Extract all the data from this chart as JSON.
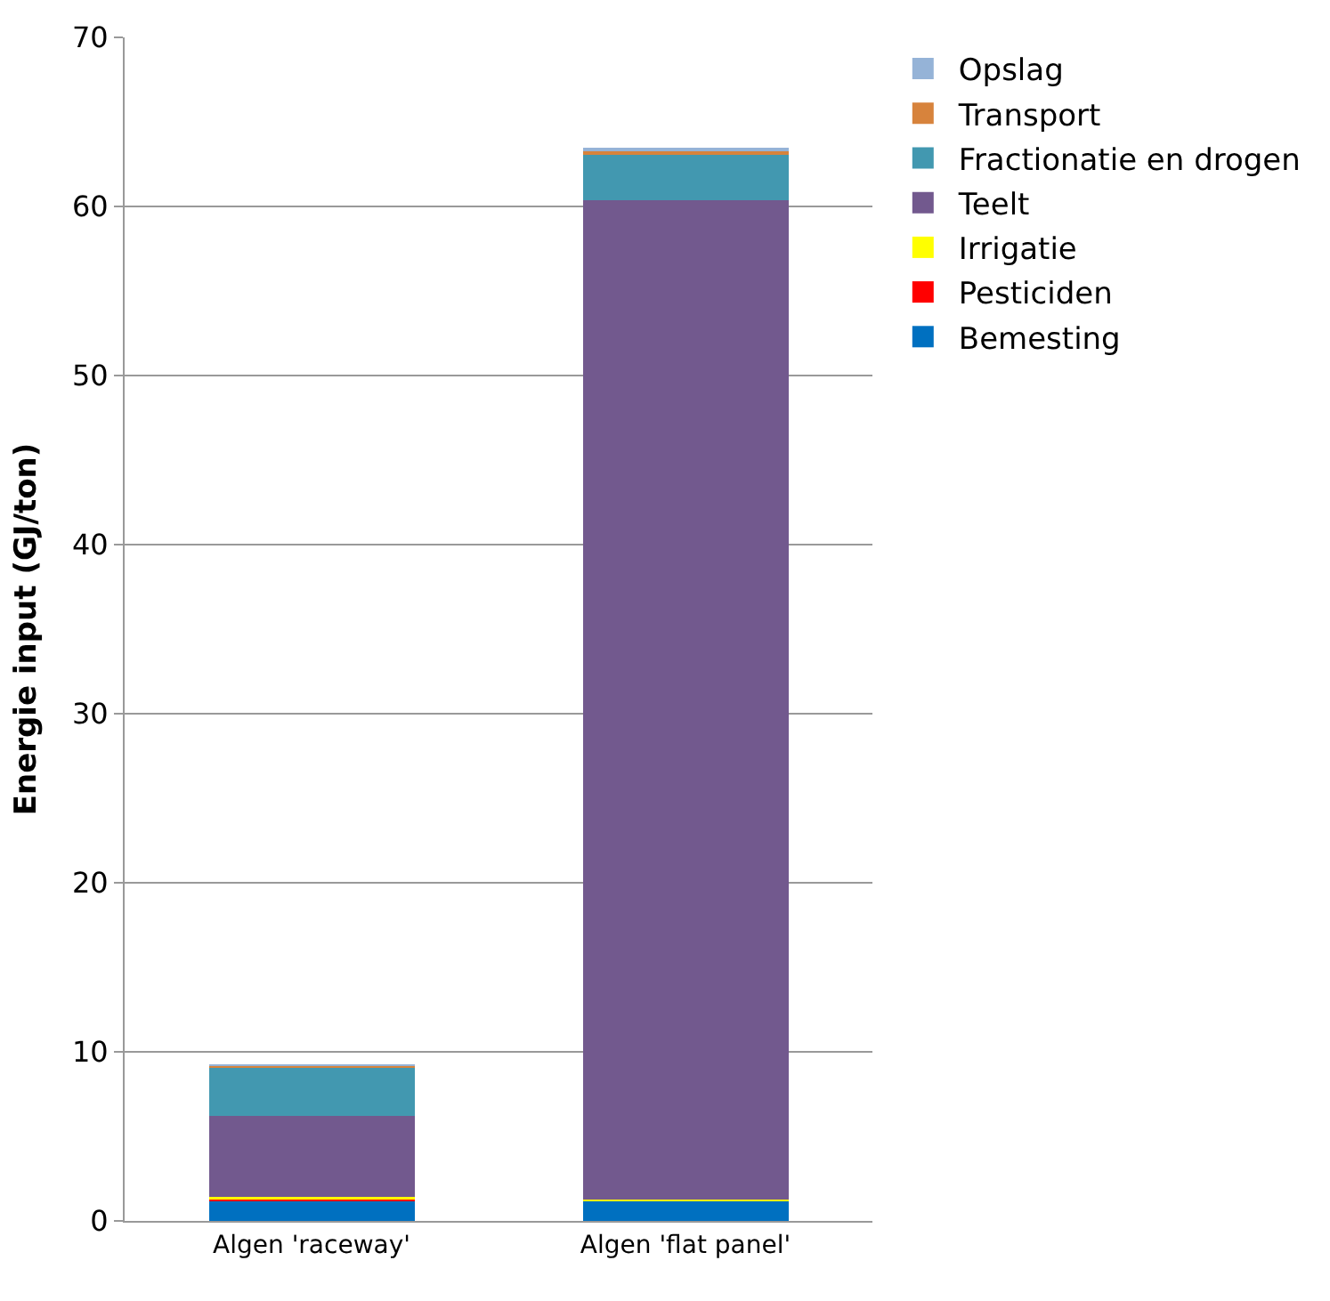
{
  "chart_data": {
    "type": "bar",
    "stacked": true,
    "ylabel": "Energie input (GJ/ton)",
    "categories": [
      "Algen 'raceway'",
      "Algen 'flat panel'"
    ],
    "series": [
      {
        "name": "Bemesting",
        "color": "#0070c0",
        "values": [
          1.25,
          1.22
        ]
      },
      {
        "name": "Pesticiden",
        "color": "#ff0000",
        "values": [
          0.03,
          null
        ]
      },
      {
        "name": "Irrigatie",
        "color": "#ffff00",
        "values": [
          0.12,
          0.03
        ]
      },
      {
        "name": "Teelt",
        "color": "#72598e",
        "values": [
          4.8,
          59.1
        ]
      },
      {
        "name": "Fractionatie en drogen",
        "color": "#4298b0",
        "values": [
          2.87,
          2.69
        ]
      },
      {
        "name": "Transport",
        "color": "#d7833c",
        "values": [
          0.13,
          0.27
        ]
      },
      {
        "name": "Opslag",
        "color": "#95b3d7",
        "values": [
          0.05,
          0.1
        ]
      }
    ],
    "ylim": [
      0,
      70
    ],
    "yticks": [
      0,
      10,
      20,
      30,
      40,
      50,
      60,
      70
    ],
    "grid": "y",
    "legend": "right"
  }
}
